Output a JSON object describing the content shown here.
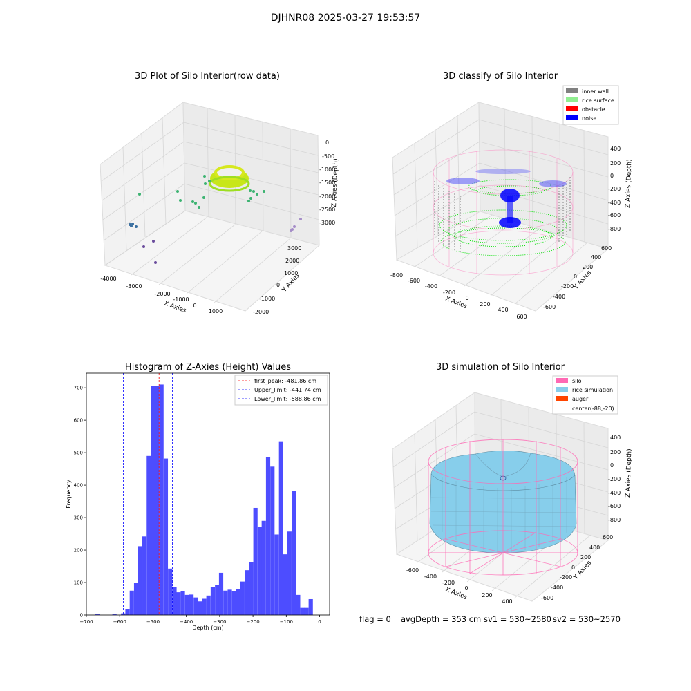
{
  "suptitle": "DJHNR08 2025-03-27 19:53:57",
  "colors": {
    "inner_wall": "#808080",
    "rice_surface": "#90ee90",
    "obstacle": "#ff0000",
    "noise": "#0000ff",
    "silo": "#ff69b4",
    "rice_simulation": "#87ceeb",
    "auger": "#ff4500",
    "hist_bar": "#4d4dff",
    "first_peak_line": "#ff0000",
    "limit_line": "#0000ff"
  },
  "panel1": {
    "title": "3D Plot of Silo Interior(row data)",
    "xlabel": "X Axies",
    "ylabel": "Y Axies",
    "zlabel": "Z Axies (Depth)",
    "xticks": [
      "-4000",
      "-3000",
      "-2000",
      "-1000",
      "0",
      "1000"
    ],
    "yticks": [
      "-2000",
      "-1000",
      "0",
      "1000",
      "2000",
      "3000"
    ],
    "zticks": [
      "0",
      "-500",
      "-1000",
      "-1500",
      "-2000",
      "-2500",
      "-3000"
    ]
  },
  "panel2": {
    "title": "3D classify of Silo Interior",
    "xlabel": "X Axies",
    "ylabel": "Y Axies",
    "zlabel": "Z Axies (Depth)",
    "xticks": [
      "-800",
      "-600",
      "-400",
      "-200",
      "0",
      "200",
      "400",
      "600"
    ],
    "yticks": [
      "-600",
      "-400",
      "-200",
      "0",
      "200",
      "400",
      "600"
    ],
    "zticks": [
      "400",
      "200",
      "0",
      "-200",
      "-400",
      "-600",
      "-800"
    ],
    "legend": [
      "inner wall",
      "rice surface",
      "obstacle",
      "noise"
    ]
  },
  "panel4": {
    "title": "3D simulation of Silo Interior",
    "xlabel": "X Axies",
    "ylabel": "Y Axies",
    "zlabel": "Z Axies (Depth)",
    "xticks": [
      "-600",
      "-400",
      "-200",
      "0",
      "200",
      "400"
    ],
    "yticks": [
      "-600",
      "-400",
      "-200",
      "0",
      "200",
      "400",
      "600"
    ],
    "zticks": [
      "400",
      "200",
      "0",
      "-200",
      "-400",
      "-600",
      "-800"
    ],
    "legend": [
      "silo",
      "rice simulation",
      "auger",
      "center(-88,-20)"
    ]
  },
  "footer": {
    "flag": "flag = 0",
    "avg": "avgDepth = 353 cm",
    "sv1": "sv1 = 530~2580",
    "sv2": "sv2 = 530~2570"
  },
  "chart_data": [
    {
      "type": "scatter",
      "title": "3D Plot of Silo Interior(row data)",
      "xlabel": "X Axies",
      "ylabel": "Y Axies",
      "zlabel": "Z Axies (Depth)",
      "xlim": [
        -4500,
        1500
      ],
      "ylim": [
        -2000,
        3500
      ],
      "zlim": [
        -3500,
        0
      ]
    },
    {
      "type": "scatter",
      "title": "3D classify of Silo Interior",
      "xlabel": "X Axies",
      "ylabel": "Y Axies",
      "zlabel": "Z Axies (Depth)",
      "xlim": [
        -800,
        700
      ],
      "ylim": [
        -700,
        700
      ],
      "zlim": [
        -900,
        500
      ],
      "series": [
        {
          "name": "inner wall"
        },
        {
          "name": "rice surface"
        },
        {
          "name": "obstacle"
        },
        {
          "name": "noise"
        }
      ]
    },
    {
      "type": "bar",
      "title": "Histogram of Z-Axies (Height) Values",
      "xlabel": "Depth (cm)",
      "ylabel": "Frequency",
      "xlim": [
        -700,
        30
      ],
      "ylim": [
        0,
        745
      ],
      "xticks": [
        -700,
        -600,
        -500,
        -400,
        -300,
        -200,
        -100,
        0
      ],
      "yticks": [
        0,
        100,
        200,
        300,
        400,
        500,
        600,
        700
      ],
      "bin_width": 12.8,
      "bin_starts": [
        -673,
        -660,
        -647,
        -634,
        -622,
        -609,
        -596,
        -583,
        -570,
        -557,
        -545,
        -532,
        -519,
        -506,
        -494,
        -481,
        -468,
        -455,
        -442,
        -430,
        -417,
        -404,
        -391,
        -378,
        -366,
        -353,
        -340,
        -327,
        -314,
        -302,
        -289,
        -276,
        -263,
        -250,
        -238,
        -225,
        -212,
        -199,
        -186,
        -174,
        -161,
        -148,
        -135,
        -122,
        -110,
        -97,
        -84,
        -71,
        -58,
        -46,
        -33,
        -20,
        -7
      ],
      "values": [
        2,
        0,
        0,
        0,
        2,
        0,
        5,
        18,
        75,
        98,
        212,
        242,
        490,
        706,
        706,
        710,
        482,
        143,
        87,
        70,
        73,
        62,
        63,
        54,
        42,
        50,
        60,
        86,
        93,
        130,
        75,
        78,
        73,
        80,
        103,
        138,
        163,
        330,
        272,
        290,
        487,
        457,
        248,
        535,
        187,
        257,
        381,
        62,
        22,
        22,
        49,
        0,
        0
      ],
      "lines": [
        {
          "name": "first_peak: -481.86 cm",
          "x": -481.86,
          "style": "dashed",
          "color": "#ff0000"
        },
        {
          "name": "Upper_limit: -441.74 cm",
          "x": -441.74,
          "style": "dashed",
          "color": "#0000ff"
        },
        {
          "name": "Lower_limit: -588.86 cm",
          "x": -588.86,
          "style": "dashed",
          "color": "#0000ff"
        }
      ],
      "legend_position": "top-right"
    },
    {
      "type": "area",
      "title": "3D simulation of Silo Interior",
      "xlabel": "X Axies",
      "ylabel": "Y Axies",
      "zlabel": "Z Axies (Depth)",
      "xlim": [
        -700,
        500
      ],
      "ylim": [
        -700,
        700
      ],
      "zlim": [
        -900,
        500
      ],
      "series": [
        {
          "name": "silo"
        },
        {
          "name": "rice simulation"
        },
        {
          "name": "auger"
        }
      ],
      "annotations": [
        "center(-88,-20)"
      ]
    }
  ]
}
